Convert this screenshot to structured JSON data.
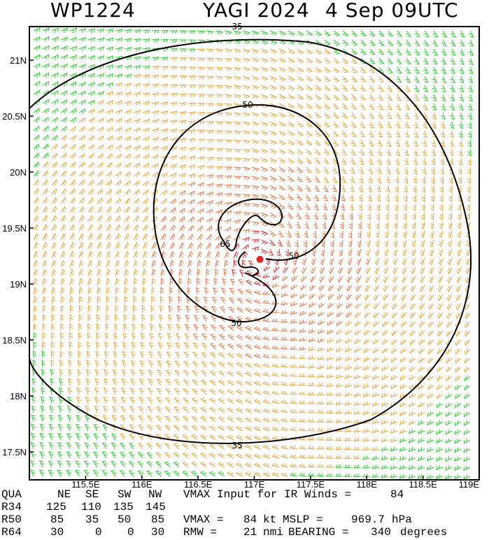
{
  "header": {
    "storm_id": "WP1224",
    "storm_name": "YAGI 2024",
    "datetime": "4 Sep 09UTC"
  },
  "map": {
    "lon_range": [
      115.0,
      119.0
    ],
    "lat_range": [
      17.25,
      21.3
    ],
    "lon_ticks": [
      "115.5E",
      "116E",
      "116.5E",
      "117E",
      "117.5E",
      "118E",
      "118.5E",
      "119E"
    ],
    "lat_ticks": [
      "17.5N",
      "18N",
      "18.5N",
      "19N",
      "19.5N",
      "20N",
      "20.5N",
      "21N"
    ],
    "storm_center": {
      "lon": 117.05,
      "lat": 19.22
    },
    "contour_labels": [
      "35",
      "35",
      "50",
      "50",
      "50",
      "65"
    ],
    "wind_colors": {
      "lt34": "#22cc22",
      "34to50": "#e8a035",
      "50to64": "#e8703a",
      "ge64": "#e02828"
    },
    "center_color": "#ee2222"
  },
  "table": {
    "header": [
      "QUA",
      "NE",
      "SE",
      "SW",
      "NW"
    ],
    "rows": [
      {
        "label": "R34",
        "values": [
          "125",
          "110",
          "135",
          "145"
        ]
      },
      {
        "label": "R50",
        "values": [
          "85",
          "35",
          "50",
          "85"
        ]
      },
      {
        "label": "R64",
        "values": [
          "30",
          "0",
          "0",
          "30"
        ]
      }
    ],
    "vmax_input_label": "VMAX Input for IR Winds =",
    "vmax_input_value": "84",
    "vmax_label": "VMAX =",
    "vmax_value": "84",
    "vmax_unit": "kt",
    "mslp_label": "MSLP =",
    "mslp_value": "969.7",
    "mslp_unit": "hPa",
    "rmw_label": "RMW =",
    "rmw_value": "21",
    "rmw_unit": "nmi",
    "bearing_label": "BEARING =",
    "bearing_value": "340",
    "bearing_unit": "degrees"
  }
}
